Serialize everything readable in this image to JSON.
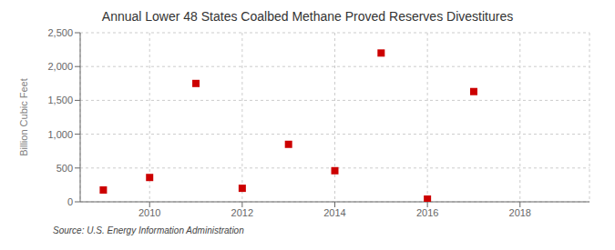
{
  "chart_data": {
    "type": "scatter",
    "title": "Annual Lower 48 States Coalbed Methane Proved Reserves Divestitures",
    "ylabel": "Billion Cubic Feet",
    "annotation": "Source: U.S. Energy Information Administration",
    "x": [
      2009,
      2010,
      2011,
      2012,
      2013,
      2014,
      2015,
      2016,
      2017
    ],
    "values": [
      175,
      360,
      1750,
      200,
      850,
      460,
      2200,
      40,
      1630
    ],
    "color": "#cc0000",
    "marker": "square",
    "xlim": [
      2008.5,
      2019.5
    ],
    "xticks": [
      2010,
      2012,
      2014,
      2016,
      2018
    ],
    "ylim": [
      0,
      2500
    ],
    "yticks": [
      0,
      500,
      {
        "value": 1000,
        "label": "1,000"
      },
      {
        "value": 1500,
        "label": "1,500"
      },
      {
        "value": 2000,
        "label": "2,000"
      },
      {
        "value": 2500,
        "label": "2,500"
      }
    ],
    "grid": true
  }
}
